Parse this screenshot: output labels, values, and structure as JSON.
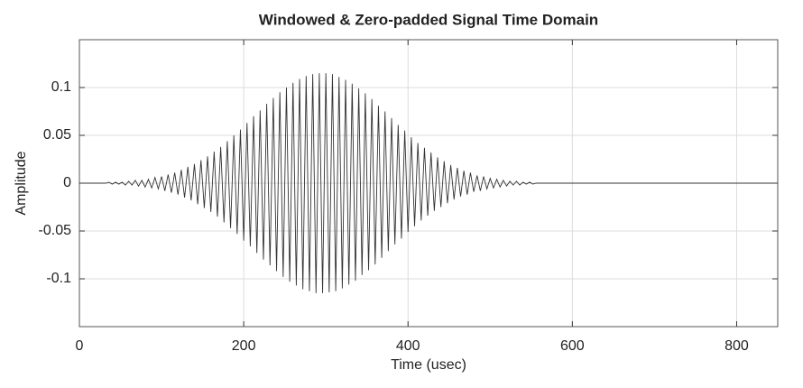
{
  "chart_data": {
    "type": "line",
    "title": "Windowed & Zero-padded Signal Time Domain",
    "xlabel": "Time (usec)",
    "ylabel": "Amplitude",
    "color": "#333333",
    "grid": true,
    "xlim": [
      0,
      850
    ],
    "ylim": [
      -0.15,
      0.15
    ],
    "xticks": [
      0,
      200,
      400,
      600,
      800
    ],
    "yticks": [
      -0.1,
      -0.05,
      0,
      0.05,
      0.1
    ],
    "x": [
      0,
      32,
      36,
      40,
      44,
      48,
      52,
      56,
      60,
      64,
      68,
      72,
      76,
      80,
      84,
      88,
      92,
      96,
      100,
      104,
      108,
      112,
      116,
      120,
      124,
      128,
      132,
      136,
      140,
      144,
      148,
      152,
      156,
      160,
      164,
      168,
      172,
      176,
      180,
      184,
      188,
      192,
      196,
      200,
      204,
      208,
      212,
      216,
      220,
      224,
      228,
      232,
      236,
      240,
      244,
      248,
      252,
      256,
      260,
      264,
      268,
      272,
      276,
      280,
      284,
      288,
      292,
      296,
      300,
      304,
      308,
      312,
      316,
      320,
      324,
      328,
      332,
      336,
      340,
      344,
      348,
      352,
      356,
      360,
      364,
      368,
      372,
      376,
      380,
      384,
      388,
      392,
      396,
      400,
      404,
      408,
      412,
      416,
      420,
      424,
      428,
      432,
      436,
      440,
      444,
      448,
      452,
      456,
      460,
      464,
      468,
      472,
      476,
      480,
      484,
      488,
      492,
      496,
      500,
      504,
      508,
      512,
      516,
      520,
      524,
      528,
      532,
      536,
      540,
      544,
      548,
      552,
      556,
      850
    ],
    "values": [
      0,
      0,
      0.001,
      -0.001,
      0.001,
      -0.001,
      0.001,
      -0.002,
      0.002,
      -0.002,
      0.003,
      -0.003,
      0.003,
      -0.004,
      0.004,
      -0.005,
      0.006,
      -0.006,
      0.007,
      -0.008,
      0.009,
      -0.01,
      0.011,
      -0.012,
      0.014,
      -0.015,
      0.017,
      -0.018,
      0.02,
      -0.022,
      0.024,
      -0.026,
      0.028,
      -0.03,
      0.033,
      -0.035,
      0.038,
      -0.041,
      0.044,
      -0.047,
      0.05,
      -0.053,
      0.056,
      -0.06,
      0.063,
      -0.066,
      0.07,
      -0.073,
      0.076,
      -0.08,
      0.083,
      -0.086,
      0.089,
      -0.092,
      0.095,
      -0.098,
      0.1,
      -0.103,
      0.105,
      -0.107,
      0.109,
      -0.111,
      0.112,
      -0.113,
      0.114,
      -0.115,
      0.115,
      -0.115,
      0.115,
      -0.114,
      0.114,
      -0.113,
      0.111,
      -0.11,
      0.108,
      -0.106,
      0.104,
      -0.102,
      0.099,
      -0.096,
      0.094,
      -0.091,
      0.088,
      -0.085,
      0.081,
      -0.078,
      0.075,
      -0.071,
      0.068,
      -0.064,
      0.061,
      -0.058,
      0.055,
      -0.051,
      0.048,
      -0.045,
      0.042,
      -0.039,
      0.037,
      -0.034,
      0.032,
      -0.029,
      0.027,
      -0.025,
      0.023,
      -0.021,
      0.019,
      -0.017,
      0.016,
      -0.014,
      0.013,
      -0.012,
      0.011,
      -0.009,
      0.008,
      -0.008,
      0.007,
      -0.006,
      0.005,
      -0.005,
      0.004,
      -0.004,
      0.003,
      -0.003,
      0.002,
      -0.002,
      0.002,
      -0.002,
      0.001,
      -0.001,
      0.001,
      -0.001,
      0,
      0
    ]
  }
}
